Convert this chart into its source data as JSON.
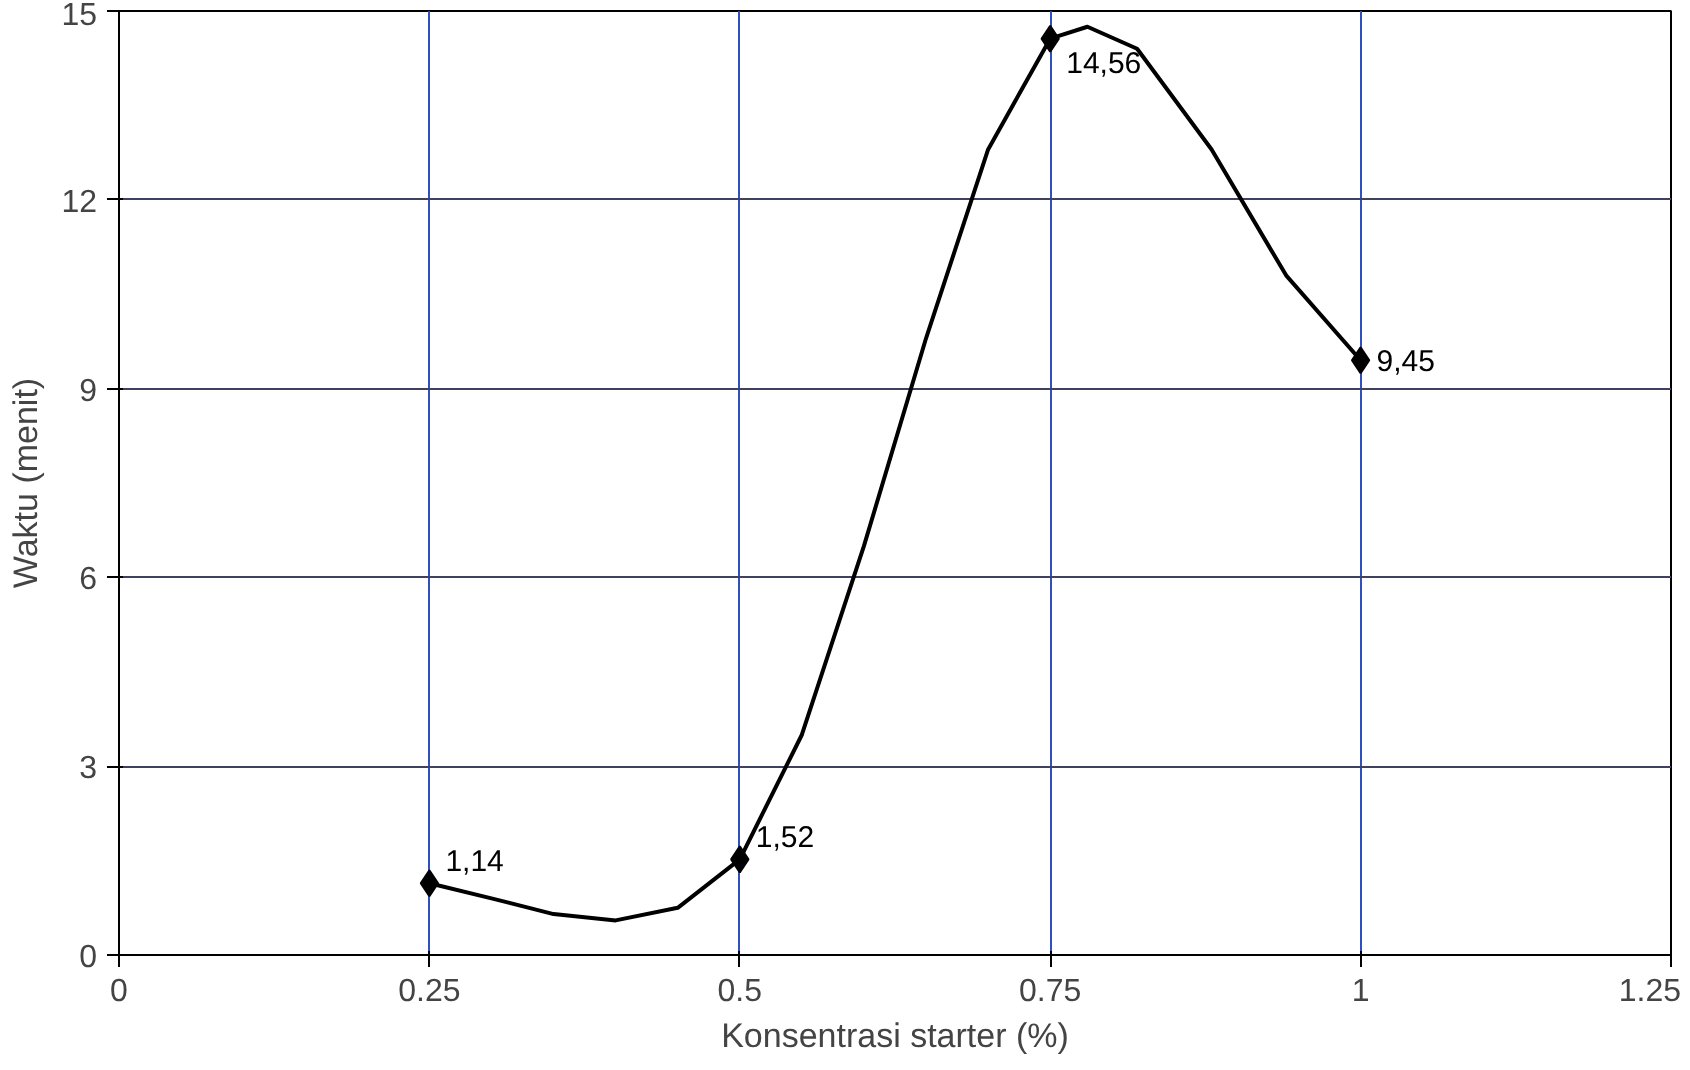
{
  "chart_data": {
    "type": "line",
    "xlabel": "Konsentrasi starter (%)",
    "ylabel": "Waktu (menit)",
    "x": [
      0.25,
      0.5,
      0.75,
      1
    ],
    "series": [
      {
        "color": "#000000",
        "marker": "none",
        "x": [
          0.25,
          0.3,
          0.35,
          0.4,
          0.45,
          0.5,
          0.55,
          0.6,
          0.65,
          0.7,
          0.75,
          0.78,
          0.82,
          0.88,
          0.94,
          1
        ],
        "values": [
          1.14,
          0.9,
          0.65,
          0.55,
          0.75,
          1.52,
          3.5,
          6.5,
          9.8,
          12.8,
          14.56,
          14.75,
          14.4,
          12.8,
          10.8,
          9.45
        ]
      },
      {
        "type": "scatter",
        "color": "#000000",
        "marker": "diamond",
        "values": [
          1.14,
          1.52,
          14.56,
          9.45
        ],
        "value_labels": [
          "1,14",
          "1,52",
          "14,56",
          "9,45"
        ]
      }
    ],
    "xlim": [
      0,
      1.25
    ],
    "xticks": [
      0,
      0.25,
      0.5,
      0.75,
      1,
      1.25
    ],
    "ylim": [
      0,
      15
    ],
    "yticks": [
      0,
      3,
      6,
      9,
      12,
      15
    ],
    "grid": true,
    "line_style": "solid"
  }
}
